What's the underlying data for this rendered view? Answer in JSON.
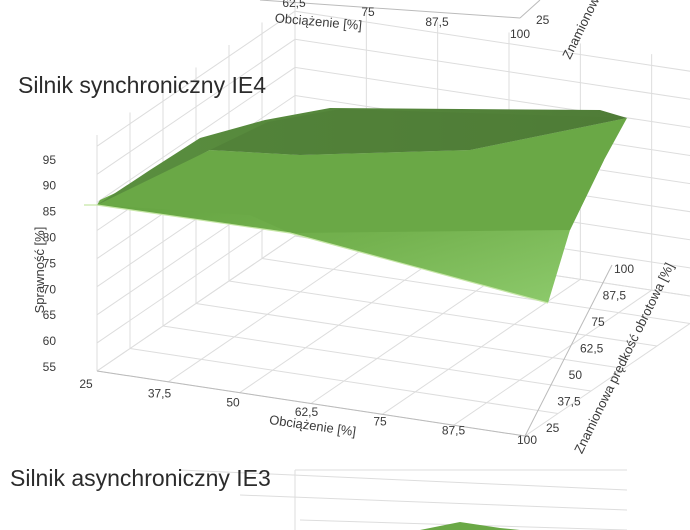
{
  "top_partial": {
    "xlabel": "Obciążenie [%]",
    "ylabel_fragment": "Znamionow",
    "x_ticks": [
      "62,5",
      "75",
      "87,5",
      "100"
    ],
    "y_ticks": [
      "25"
    ]
  },
  "bottom_partial": {
    "title": "Silnik asynchroniczny IE3"
  },
  "chart_data": {
    "type": "surface3d",
    "title": "Silnik synchroniczny IE4",
    "xlabel": "Obciążenie [%]",
    "ylabel": "Znamionowa prędkość obrotowa [%]",
    "zlabel": "Sprawność [%]",
    "x": [
      25,
      100
    ],
    "y": [
      25,
      100
    ],
    "x_tick_labels": [
      "25",
      "37,5",
      "50",
      "62,5",
      "75",
      "87,5",
      "100"
    ],
    "y_tick_labels": [
      "25",
      "37,5",
      "50",
      "62,5",
      "75",
      "87,5",
      "100"
    ],
    "z_tick_labels": [
      "55",
      "60",
      "65",
      "70",
      "75",
      "80",
      "85",
      "90",
      "95"
    ],
    "zlim": [
      55,
      97
    ],
    "grid": true,
    "corners": [
      {
        "load": 25,
        "speed": 25,
        "efficiency": 86
      },
      {
        "load": 100,
        "speed": 25,
        "efficiency": 65
      },
      {
        "load": 25,
        "speed": 100,
        "efficiency": 90
      },
      {
        "load": 100,
        "speed": 100,
        "efficiency": 96
      }
    ],
    "colors": {
      "surface_light": "#8fcc6e",
      "surface_mid": "#5f9e3c",
      "surface_dark": "#4f7c37"
    }
  }
}
